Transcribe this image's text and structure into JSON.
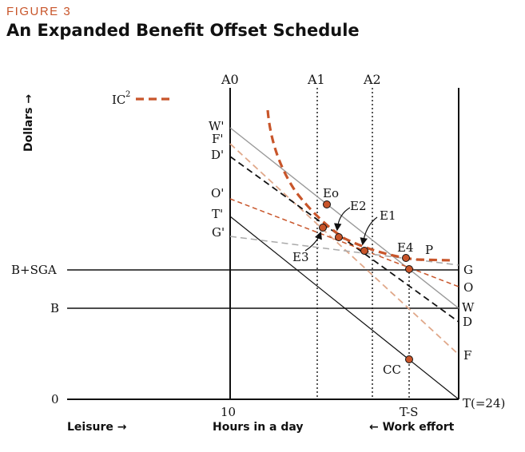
{
  "figure_label": "FIGURE 3",
  "title": "An Expanded Benefit Offset Schedule",
  "chart_data": {
    "type": "line",
    "ylabel": "Dollars →",
    "x_bottom_labels": {
      "left": "Leisure →",
      "center": "Hours in a day",
      "right": "← Work effort"
    },
    "x_tick_labels": [
      "10",
      "T-S",
      "T(=24)"
    ],
    "y_tick_labels": [
      "0",
      "B",
      "B+SGA"
    ],
    "vertical_lines": [
      "A0",
      "A1",
      "A2"
    ],
    "legend": [
      {
        "name": "IC",
        "sup": "2",
        "color": "#c8552a",
        "style": "dashed"
      }
    ],
    "left_labels": [
      "W'",
      "F'",
      "D'",
      "O'",
      "T'",
      "G'"
    ],
    "right_labels": [
      "G",
      "O",
      "W",
      "D",
      "F"
    ],
    "points": [
      "Eo",
      "E2",
      "E1",
      "E3",
      "E4",
      "P",
      "CC"
    ],
    "colors": {
      "accent": "#c8552a",
      "gray": "#999999",
      "light_orange": "#e0a88a",
      "black": "#111111"
    }
  }
}
